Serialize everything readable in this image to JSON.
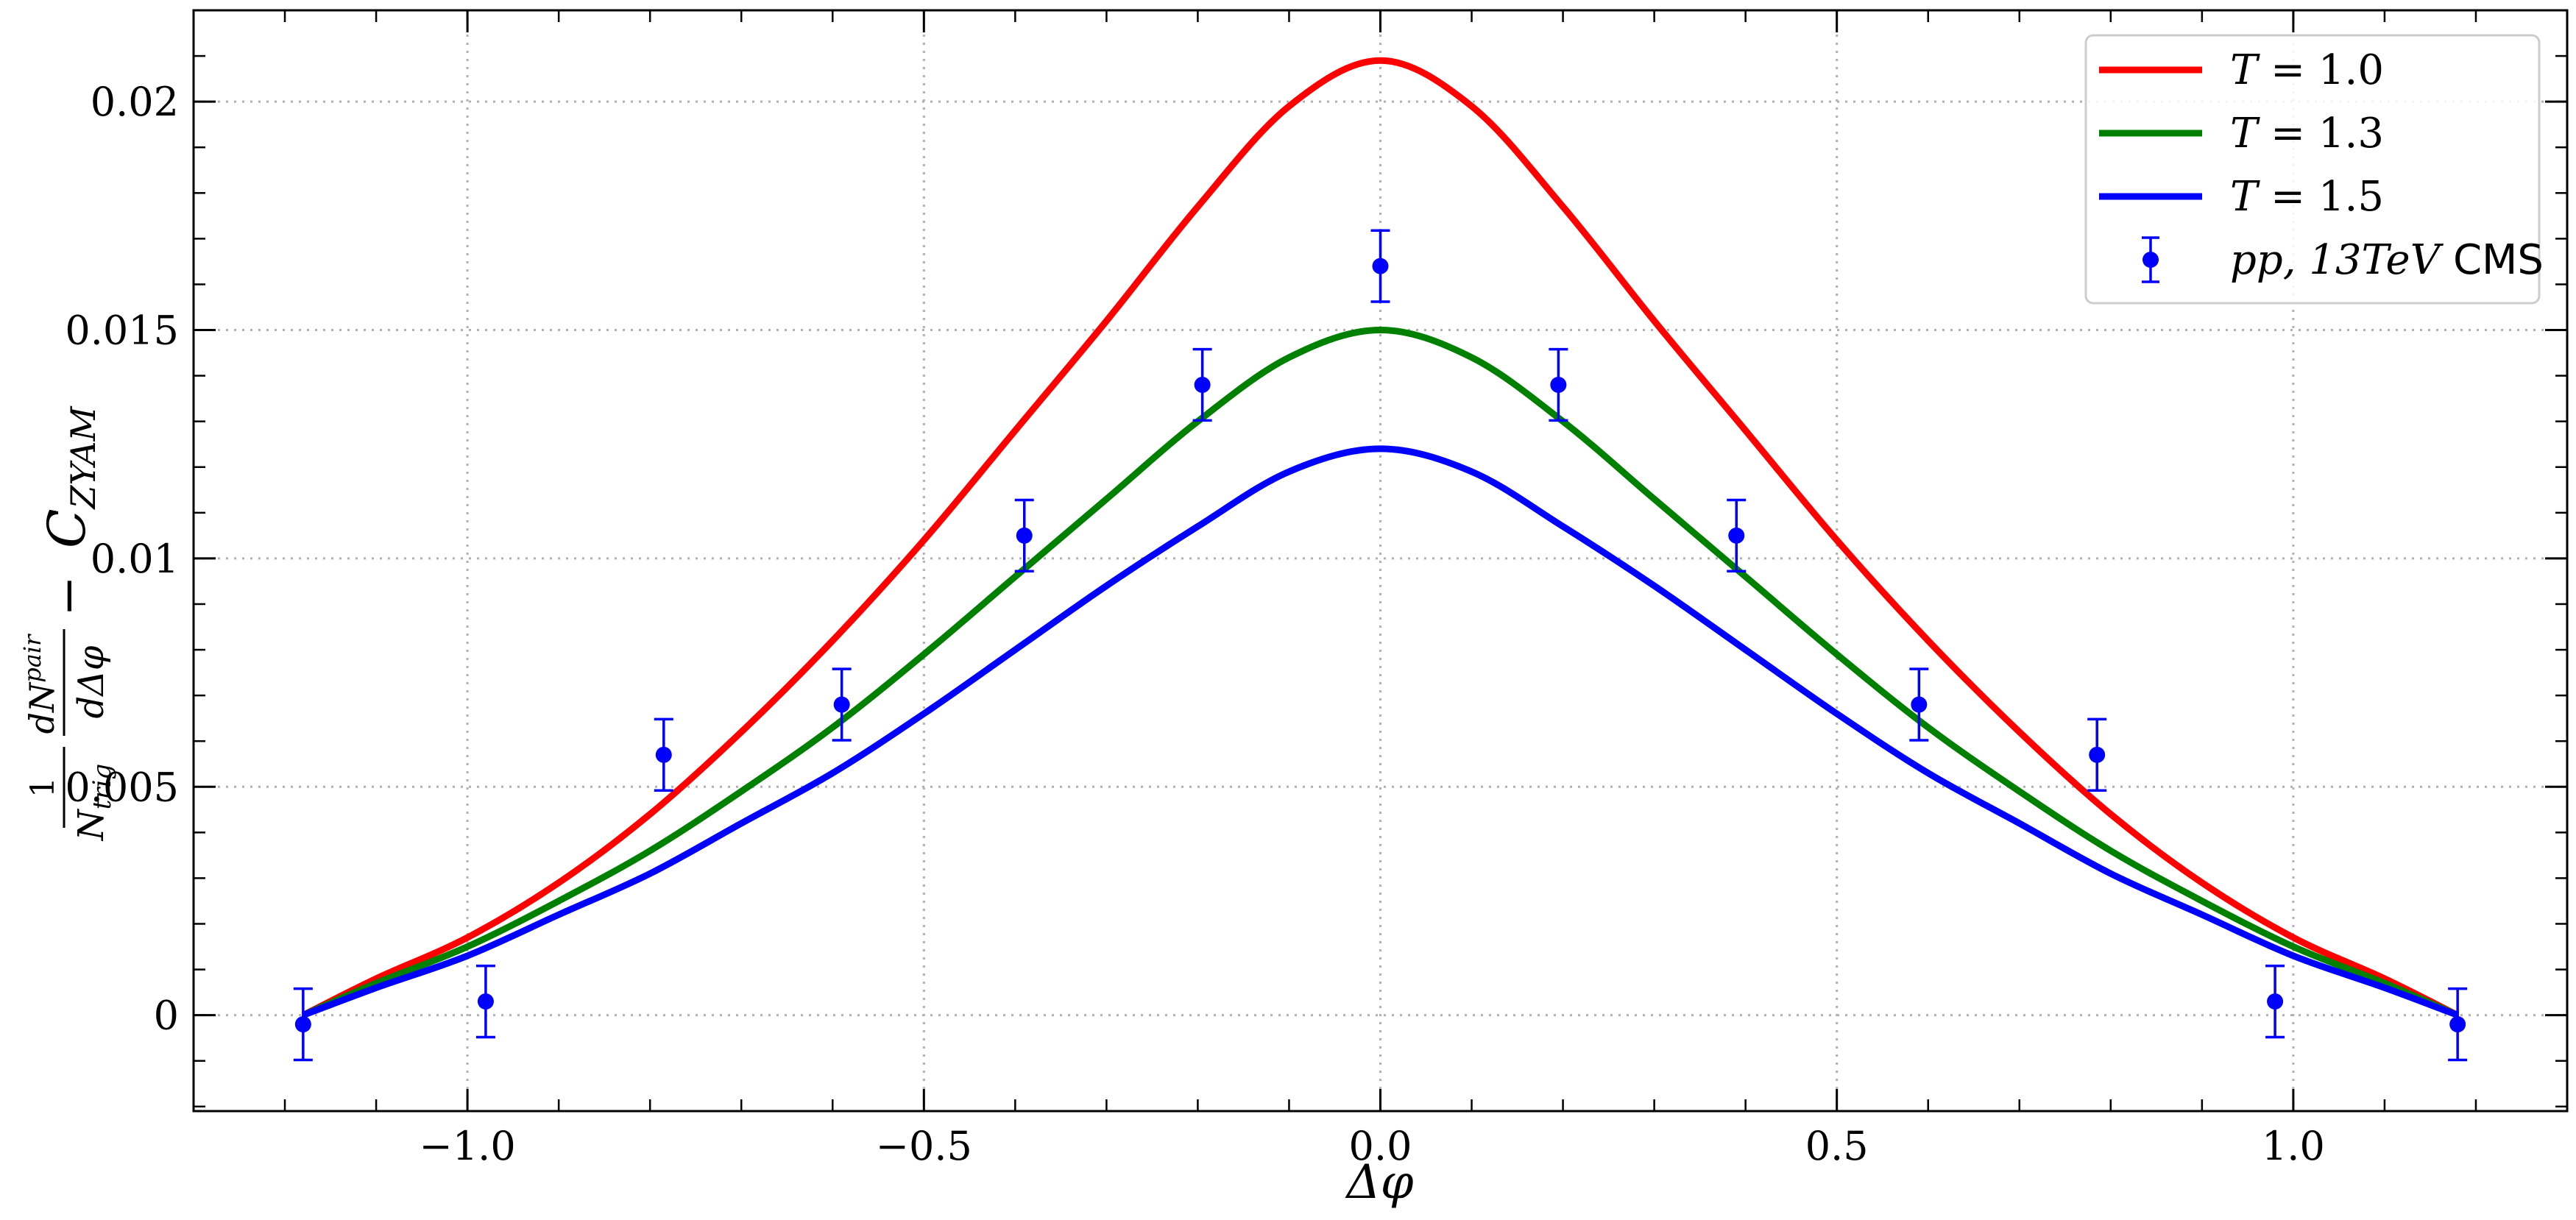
{
  "chart_data": {
    "type": "line",
    "title": "",
    "xlabel": "Δφ",
    "ylabel": "(1/N_trig) dN^pair/dΔφ − C_ZYAM",
    "ylabel_parts": {
      "frac1_num": "1",
      "frac1_den": "N",
      "frac1_den_sub": "trig",
      "frac2_num": "dN",
      "frac2_num_sup": "pair",
      "frac2_den": "dΔφ",
      "minus": "−",
      "c": "C",
      "c_sub": "ZYAM"
    },
    "xlim": [
      -1.3,
      1.3
    ],
    "ylim": [
      -0.0021,
      0.022
    ],
    "x_ticks": [
      {
        "value": -1.0,
        "label": "−1.0"
      },
      {
        "value": -0.5,
        "label": "−0.5"
      },
      {
        "value": 0.0,
        "label": "0.0"
      },
      {
        "value": 0.5,
        "label": "0.5"
      },
      {
        "value": 1.0,
        "label": "1.0"
      }
    ],
    "y_ticks": [
      {
        "value": 0,
        "label": "0"
      },
      {
        "value": 0.005,
        "label": "0.005"
      },
      {
        "value": 0.01,
        "label": "0.01"
      },
      {
        "value": 0.015,
        "label": "0.015"
      },
      {
        "value": 0.02,
        "label": "0.02"
      }
    ],
    "grid": true,
    "legend_position": "top-right",
    "series": [
      {
        "name": "T = 1.0",
        "legend_label": {
          "var": "T",
          "eq": " = 1.0"
        },
        "color": "#ff0000",
        "type": "line",
        "x": [
          -1.18,
          -1.1,
          -1.0,
          -0.9,
          -0.8,
          -0.7,
          -0.6,
          -0.5,
          -0.4,
          -0.3,
          -0.2,
          -0.1,
          0.0,
          0.1,
          0.2,
          0.3,
          0.4,
          0.5,
          0.6,
          0.7,
          0.8,
          0.9,
          1.0,
          1.1,
          1.18
        ],
        "y": [
          0.0,
          0.0008,
          0.0017,
          0.0029,
          0.0044,
          0.0062,
          0.0082,
          0.0104,
          0.0128,
          0.0152,
          0.0177,
          0.0199,
          0.0209,
          0.0199,
          0.0177,
          0.0152,
          0.0128,
          0.0104,
          0.0082,
          0.0062,
          0.0044,
          0.0029,
          0.0017,
          0.0008,
          0.0
        ]
      },
      {
        "name": "T = 1.3",
        "legend_label": {
          "var": "T",
          "eq": " = 1.3"
        },
        "color": "#008000",
        "type": "line",
        "x": [
          -1.18,
          -1.1,
          -1.0,
          -0.9,
          -0.8,
          -0.7,
          -0.6,
          -0.5,
          -0.4,
          -0.3,
          -0.2,
          -0.1,
          0.0,
          0.1,
          0.2,
          0.3,
          0.4,
          0.5,
          0.6,
          0.7,
          0.8,
          0.9,
          1.0,
          1.1,
          1.18
        ],
        "y": [
          0.0,
          0.0007,
          0.0015,
          0.0025,
          0.0036,
          0.0049,
          0.0063,
          0.0079,
          0.0096,
          0.0113,
          0.013,
          0.0144,
          0.015,
          0.0144,
          0.013,
          0.0113,
          0.0096,
          0.0079,
          0.0063,
          0.0049,
          0.0036,
          0.0025,
          0.0015,
          0.0007,
          0.0
        ]
      },
      {
        "name": "T = 1.5",
        "legend_label": {
          "var": "T",
          "eq": " = 1.5"
        },
        "color": "#0000ff",
        "type": "line",
        "x": [
          -1.18,
          -1.1,
          -1.0,
          -0.9,
          -0.8,
          -0.7,
          -0.6,
          -0.5,
          -0.4,
          -0.3,
          -0.2,
          -0.1,
          0.0,
          0.1,
          0.2,
          0.3,
          0.4,
          0.5,
          0.6,
          0.7,
          0.8,
          0.9,
          1.0,
          1.1,
          1.18
        ],
        "y": [
          0.0,
          0.0006,
          0.0013,
          0.0022,
          0.0031,
          0.0042,
          0.0053,
          0.0066,
          0.008,
          0.0094,
          0.0107,
          0.0119,
          0.0124,
          0.0119,
          0.0107,
          0.0094,
          0.008,
          0.0066,
          0.0053,
          0.0042,
          0.0031,
          0.0022,
          0.0013,
          0.0006,
          0.0
        ]
      },
      {
        "name": "pp, 13TeV CMS",
        "legend_label": {
          "var": "pp, 13TeV",
          "eq": " CMS"
        },
        "color": "#0000ff",
        "type": "errorbar",
        "x": [
          -1.18,
          -0.98,
          -0.785,
          -0.59,
          -0.39,
          -0.195,
          0.0,
          0.195,
          0.39,
          0.59,
          0.785,
          0.98,
          1.18
        ],
        "y": [
          -0.0002,
          0.0003,
          0.0057,
          0.0068,
          0.0105,
          0.0138,
          0.0164,
          0.0138,
          0.0105,
          0.0068,
          0.0057,
          0.0003,
          -0.0002
        ],
        "yerr": [
          0.00078,
          0.00078,
          0.00078,
          0.00078,
          0.00078,
          0.00078,
          0.00078,
          0.00078,
          0.00078,
          0.00078,
          0.00078,
          0.00078,
          0.00078
        ]
      }
    ]
  }
}
